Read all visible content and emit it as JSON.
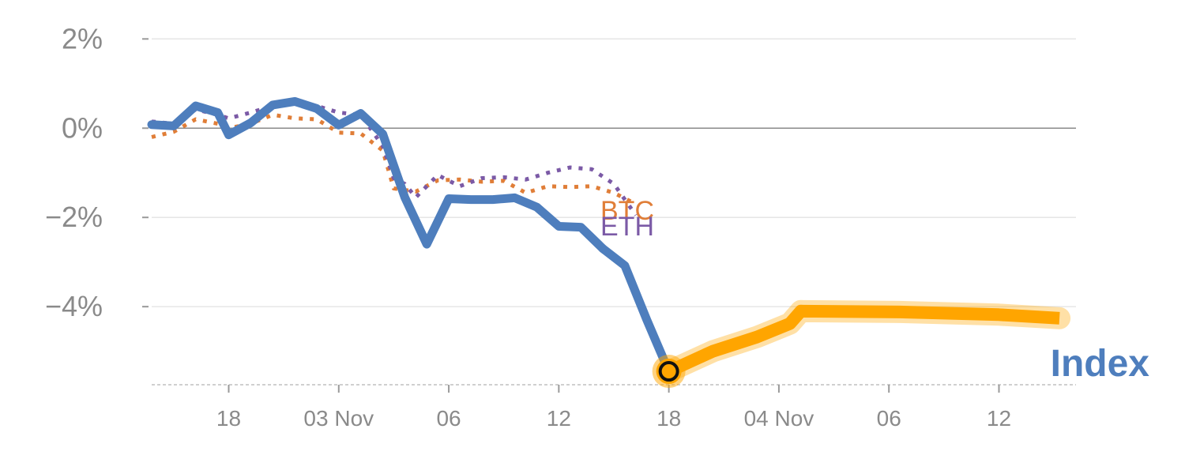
{
  "chart_data": {
    "type": "line",
    "title": "",
    "xlabel": "",
    "ylabel": "",
    "ylim": [
      -5.75,
      2.2
    ],
    "xlim": [
      0,
      84
    ],
    "grid": true,
    "y_ticks": [
      {
        "v": 2,
        "label": "2%"
      },
      {
        "v": 0,
        "label": "0%"
      },
      {
        "v": -2,
        "label": "−2%"
      },
      {
        "v": -4,
        "label": "−4%"
      }
    ],
    "x_ticks": [
      {
        "v": 7,
        "label": "18"
      },
      {
        "v": 17,
        "label": "03 Nov"
      },
      {
        "v": 27,
        "label": "06"
      },
      {
        "v": 37,
        "label": "12"
      },
      {
        "v": 47,
        "label": "18"
      },
      {
        "v": 57,
        "label": "04 Nov"
      },
      {
        "v": 67,
        "label": "06"
      },
      {
        "v": 77,
        "label": "12"
      }
    ],
    "series": [
      {
        "name": "Index",
        "color": "#4e7ebd",
        "style": "solid",
        "x": [
          0,
          2,
          4,
          6,
          7,
          9,
          11,
          13,
          15,
          17,
          19,
          21,
          23,
          25,
          27,
          29,
          31,
          33,
          35,
          37,
          39,
          41
        ],
        "y": [
          0.08,
          0.05,
          0.5,
          0.35,
          -0.15,
          0.12,
          0.52,
          0.6,
          0.44,
          0.07,
          0.33,
          -0.13,
          -1.55,
          -2.6,
          -1.58,
          -1.6,
          -1.6,
          -1.56,
          -1.77,
          -2.2,
          -2.22,
          -2.7
        ]
      },
      {
        "name": "Index",
        "color": "#4e7ebd",
        "style": "solid",
        "x": [
          41,
          43,
          45,
          47
        ],
        "y": [
          -2.7,
          -3.08,
          -4.3,
          -5.45
        ]
      },
      {
        "name": "Index",
        "color": "#ffa500",
        "style": "projection",
        "x": [
          47,
          51,
          55,
          58,
          59,
          68,
          77,
          82.5
        ],
        "y": [
          -5.45,
          -5.0,
          -4.68,
          -4.38,
          -4.1,
          -4.12,
          -4.18,
          -4.26
        ]
      },
      {
        "name": "BTC",
        "color": "#e07e38",
        "style": "dotted",
        "x": [
          0,
          2,
          4,
          6,
          7,
          9,
          11,
          13,
          15,
          17,
          19,
          21,
          22,
          24,
          26,
          28,
          30,
          32,
          34,
          36,
          38,
          40,
          42,
          44
        ],
        "y": [
          -0.2,
          -0.08,
          0.2,
          0.1,
          0.0,
          0.1,
          0.3,
          0.22,
          0.2,
          -0.1,
          -0.12,
          -0.5,
          -1.35,
          -1.42,
          -1.17,
          -1.15,
          -1.2,
          -1.18,
          -1.45,
          -1.3,
          -1.32,
          -1.3,
          -1.45,
          -1.7
        ]
      },
      {
        "name": "ETH",
        "color": "#7b5aa6",
        "style": "dotted",
        "x": [
          0,
          2,
          4,
          6,
          7,
          9,
          11,
          13,
          15,
          17,
          19,
          21,
          22,
          23,
          24,
          26,
          28,
          30,
          32,
          34,
          36,
          38,
          40,
          42,
          44
        ],
        "y": [
          0.15,
          0.1,
          0.42,
          0.3,
          0.22,
          0.35,
          0.5,
          0.55,
          0.5,
          0.35,
          0.3,
          -0.4,
          -1.12,
          -1.25,
          -1.55,
          -1.05,
          -1.3,
          -1.12,
          -1.1,
          -1.15,
          -1.0,
          -0.88,
          -0.92,
          -1.25,
          -1.95
        ]
      }
    ],
    "marker": {
      "x": 47,
      "y": -5.45
    },
    "labels": {
      "btc": "BTC",
      "eth": "ETH",
      "index": "Index"
    }
  }
}
